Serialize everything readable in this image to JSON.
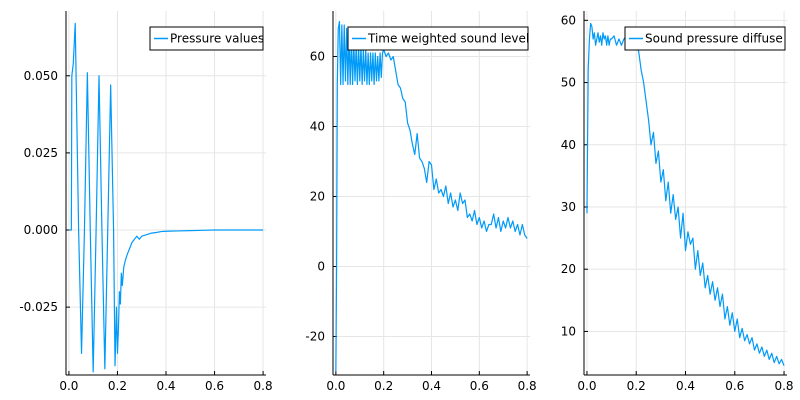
{
  "chart_data": [
    {
      "type": "line",
      "xlim": [
        -0.012,
        0.812
      ],
      "ylim": [
        -0.047,
        0.071
      ],
      "xticks": [
        0.0,
        0.2,
        0.4,
        0.6,
        0.8
      ],
      "xtick_labels": [
        "0.0",
        "0.2",
        "0.4",
        "0.6",
        "0.8"
      ],
      "yticks": [
        -0.025,
        0.0,
        0.025,
        0.05
      ],
      "ytick_labels": [
        "-0.025",
        "0.000",
        "0.025",
        "0.050"
      ],
      "grid": true,
      "legend_position": "top-right",
      "series": [
        {
          "name": "Pressure values",
          "color": "#009af9",
          "x": [
            0.0,
            0.01,
            0.012,
            0.018,
            0.026,
            0.04,
            0.052,
            0.064,
            0.076,
            0.088,
            0.1,
            0.112,
            0.124,
            0.136,
            0.148,
            0.16,
            0.172,
            0.184,
            0.19,
            0.196,
            0.2,
            0.204,
            0.208,
            0.212,
            0.216,
            0.22,
            0.226,
            0.232,
            0.24,
            0.25,
            0.26,
            0.27,
            0.28,
            0.29,
            0.3,
            0.32,
            0.34,
            0.36,
            0.38,
            0.4,
            0.45,
            0.5,
            0.55,
            0.6,
            0.65,
            0.7,
            0.75,
            0.8
          ],
          "y": [
            0.0,
            0.0,
            0.05,
            0.054,
            0.067,
            0.0,
            -0.04,
            0.0,
            0.051,
            0.0,
            -0.046,
            0.0,
            0.05,
            0.0,
            -0.045,
            0.0,
            0.047,
            0.0,
            -0.044,
            -0.025,
            -0.04,
            -0.032,
            -0.02,
            -0.024,
            -0.014,
            -0.018,
            -0.012,
            -0.01,
            -0.008,
            -0.006,
            -0.004,
            -0.003,
            -0.002,
            -0.003,
            -0.002,
            -0.0015,
            -0.001,
            -0.0008,
            -0.0005,
            -0.0004,
            -0.0003,
            -0.0002,
            -0.0001,
            0.0,
            0.0,
            0.0,
            0.0,
            0.0
          ]
        }
      ]
    },
    {
      "type": "line",
      "xlim": [
        -0.012,
        0.812
      ],
      "ylim": [
        -31,
        73
      ],
      "xticks": [
        0.0,
        0.2,
        0.4,
        0.6,
        0.8
      ],
      "xtick_labels": [
        "0.0",
        "0.2",
        "0.4",
        "0.6",
        "0.8"
      ],
      "yticks": [
        -20,
        0,
        20,
        40,
        60
      ],
      "ytick_labels": [
        "-20",
        "0",
        "20",
        "40",
        "60"
      ],
      "grid": true,
      "legend_position": "top-right",
      "series": [
        {
          "name": "Time weighted sound level",
          "color": "#009af9",
          "x": [
            0.0,
            0.003,
            0.006,
            0.01,
            0.015,
            0.02,
            0.025,
            0.03,
            0.035,
            0.04,
            0.045,
            0.05,
            0.055,
            0.06,
            0.065,
            0.07,
            0.075,
            0.08,
            0.085,
            0.09,
            0.095,
            0.1,
            0.105,
            0.11,
            0.115,
            0.12,
            0.125,
            0.13,
            0.135,
            0.14,
            0.145,
            0.15,
            0.155,
            0.16,
            0.165,
            0.17,
            0.175,
            0.18,
            0.185,
            0.19,
            0.195,
            0.2,
            0.21,
            0.22,
            0.23,
            0.24,
            0.25,
            0.26,
            0.27,
            0.28,
            0.29,
            0.3,
            0.31,
            0.32,
            0.33,
            0.34,
            0.35,
            0.36,
            0.37,
            0.38,
            0.39,
            0.4,
            0.41,
            0.42,
            0.43,
            0.44,
            0.45,
            0.46,
            0.47,
            0.48,
            0.49,
            0.5,
            0.51,
            0.52,
            0.53,
            0.54,
            0.55,
            0.56,
            0.57,
            0.58,
            0.59,
            0.6,
            0.61,
            0.62,
            0.63,
            0.64,
            0.65,
            0.66,
            0.67,
            0.68,
            0.69,
            0.7,
            0.71,
            0.72,
            0.73,
            0.74,
            0.75,
            0.76,
            0.77,
            0.78,
            0.79,
            0.8
          ],
          "y": [
            -30,
            0,
            52,
            68,
            70,
            52,
            69,
            52,
            69,
            53,
            68,
            52,
            66,
            52,
            65,
            52,
            64,
            53,
            63,
            52,
            63,
            53,
            63,
            52,
            62,
            53,
            62,
            52,
            61,
            52,
            61,
            53,
            61,
            52,
            61,
            53,
            60,
            53,
            61,
            54,
            61,
            62,
            60,
            61,
            59,
            60,
            56,
            52,
            51,
            48,
            47,
            41,
            39,
            35,
            32,
            38,
            31,
            30,
            28,
            24,
            30,
            29,
            22,
            25,
            21,
            22,
            20,
            23,
            18,
            21,
            17,
            19,
            16,
            21,
            18,
            19,
            14,
            15,
            13,
            16,
            12,
            14,
            11,
            13,
            10,
            12,
            12,
            15,
            11,
            14,
            10,
            13,
            11,
            14,
            11,
            13,
            10,
            12,
            9,
            12,
            9,
            8
          ]
        }
      ]
    },
    {
      "type": "line",
      "xlim": [
        -0.012,
        0.812
      ],
      "ylim": [
        3.0,
        61.5
      ],
      "xticks": [
        0.0,
        0.2,
        0.4,
        0.6,
        0.8
      ],
      "xtick_labels": [
        "0.0",
        "0.2",
        "0.4",
        "0.6",
        "0.8"
      ],
      "yticks": [
        10,
        20,
        30,
        40,
        50,
        60
      ],
      "ytick_labels": [
        "10",
        "20",
        "30",
        "40",
        "50",
        "60"
      ],
      "grid": true,
      "legend_position": "top-right",
      "series": [
        {
          "name": "Sound pressure diffuse",
          "color": "#009af9",
          "x": [
            0.0,
            0.005,
            0.01,
            0.015,
            0.02,
            0.025,
            0.03,
            0.035,
            0.04,
            0.045,
            0.05,
            0.055,
            0.06,
            0.065,
            0.07,
            0.075,
            0.08,
            0.085,
            0.09,
            0.095,
            0.1,
            0.11,
            0.12,
            0.13,
            0.14,
            0.15,
            0.16,
            0.17,
            0.18,
            0.19,
            0.2,
            0.21,
            0.22,
            0.23,
            0.24,
            0.25,
            0.26,
            0.27,
            0.28,
            0.29,
            0.3,
            0.31,
            0.32,
            0.33,
            0.34,
            0.35,
            0.36,
            0.37,
            0.38,
            0.39,
            0.4,
            0.41,
            0.42,
            0.43,
            0.44,
            0.45,
            0.46,
            0.47,
            0.48,
            0.49,
            0.5,
            0.51,
            0.52,
            0.53,
            0.54,
            0.55,
            0.56,
            0.57,
            0.58,
            0.59,
            0.6,
            0.61,
            0.62,
            0.63,
            0.64,
            0.65,
            0.66,
            0.67,
            0.68,
            0.69,
            0.7,
            0.71,
            0.72,
            0.73,
            0.74,
            0.75,
            0.76,
            0.77,
            0.78,
            0.79,
            0.8
          ],
          "y": [
            29,
            52,
            57,
            59.5,
            59,
            57,
            58,
            56,
            57,
            58,
            56.5,
            57.5,
            56,
            58,
            57,
            57.5,
            56,
            57.5,
            56,
            57,
            57,
            57.5,
            56,
            57,
            56,
            57,
            57.5,
            57.5,
            57,
            57,
            56,
            55,
            52,
            50,
            47,
            44,
            40,
            42,
            37,
            39,
            34,
            36,
            31,
            34,
            29,
            32,
            28,
            30,
            25,
            29,
            23,
            26,
            24,
            25,
            20,
            23,
            19,
            21,
            17,
            19,
            16,
            18,
            15,
            17,
            14,
            16,
            12,
            14,
            11,
            13,
            10,
            12,
            9,
            10.5,
            8.5,
            9.5,
            8,
            9,
            7,
            8,
            6.5,
            7.5,
            6,
            7,
            5.5,
            6.5,
            5,
            6,
            4.8,
            5.5,
            4.5
          ]
        }
      ]
    }
  ]
}
